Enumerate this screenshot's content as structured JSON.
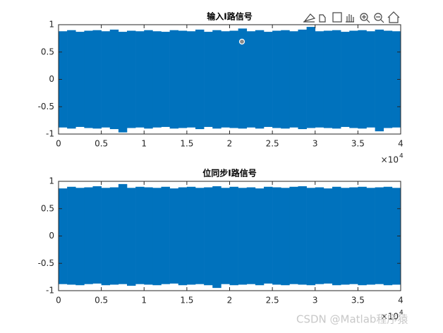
{
  "chart_data": [
    {
      "type": "band",
      "title": "输入I路信号",
      "color": "#0072bd",
      "x": [
        0,
        1000,
        2000,
        3000,
        4000,
        5000,
        6000,
        7000,
        8000,
        9000,
        10000,
        11000,
        12000,
        13000,
        14000,
        15000,
        16000,
        17000,
        18000,
        19000,
        20000,
        21000,
        22000,
        23000,
        24000,
        25000,
        26000,
        27000,
        28000,
        29000,
        30000,
        31000,
        32000,
        33000,
        34000,
        35000,
        36000,
        37000,
        38000,
        39000
      ],
      "upper": [
        0.88,
        0.9,
        0.87,
        0.89,
        0.9,
        0.88,
        0.91,
        0.87,
        0.89,
        0.88,
        0.9,
        0.88,
        0.87,
        0.9,
        0.89,
        0.88,
        0.91,
        0.87,
        0.9,
        0.88,
        0.89,
        0.93,
        0.88,
        0.9,
        0.87,
        0.89,
        0.9,
        0.88,
        0.91,
        0.96,
        0.88,
        0.89,
        0.9,
        0.87,
        0.89,
        0.9,
        0.88,
        0.91,
        0.89,
        0.88
      ],
      "lower": [
        -0.88,
        -0.9,
        -0.87,
        -0.89,
        -0.9,
        -0.88,
        -0.91,
        -0.97,
        -0.89,
        -0.88,
        -0.9,
        -0.88,
        -0.87,
        -0.9,
        -0.89,
        -0.88,
        -0.91,
        -0.87,
        -0.9,
        -0.88,
        -0.89,
        -0.9,
        -0.88,
        -0.9,
        -0.87,
        -0.89,
        -0.9,
        -0.88,
        -0.91,
        -0.89,
        -0.88,
        -0.89,
        -0.9,
        -0.87,
        -0.89,
        -0.9,
        -0.88,
        -0.95,
        -0.89,
        -0.88
      ],
      "xlim": [
        0,
        40000
      ],
      "ylim": [
        -1,
        1
      ],
      "xticks": [
        0,
        {
          "value": 5000,
          "label": "0.5"
        },
        {
          "value": 10000,
          "label": "1"
        },
        {
          "value": 15000,
          "label": "1.5"
        },
        {
          "value": 20000,
          "label": "2"
        },
        {
          "value": 25000,
          "label": "2.5"
        },
        {
          "value": 30000,
          "label": "3"
        },
        {
          "value": 35000,
          "label": "3.5"
        },
        {
          "value": 40000,
          "label": "4"
        }
      ],
      "yticks": [
        -1,
        -0.5,
        0,
        0.5,
        1
      ],
      "x_exponent": {
        "base": "×10",
        "power": "4"
      }
    },
    {
      "type": "band",
      "title": "位同步I路信号",
      "color": "#0072bd",
      "x": [
        0,
        1000,
        2000,
        3000,
        4000,
        5000,
        6000,
        7000,
        8000,
        9000,
        10000,
        11000,
        12000,
        13000,
        14000,
        15000,
        16000,
        17000,
        18000,
        19000,
        20000,
        21000,
        22000,
        23000,
        24000,
        25000,
        26000,
        27000,
        28000,
        29000,
        30000,
        31000,
        32000,
        33000,
        34000,
        35000,
        36000,
        37000,
        38000,
        39000
      ],
      "upper": [
        0.87,
        0.9,
        0.88,
        0.89,
        0.91,
        0.88,
        0.89,
        0.95,
        0.88,
        0.9,
        0.89,
        0.88,
        0.9,
        0.87,
        0.89,
        0.9,
        0.88,
        0.89,
        0.91,
        0.88,
        0.9,
        0.88,
        0.89,
        0.87,
        0.9,
        0.89,
        0.88,
        0.9,
        0.91,
        0.88,
        0.89,
        0.87,
        0.9,
        0.88,
        0.89,
        0.9,
        0.88,
        0.89,
        0.9,
        0.88
      ],
      "lower": [
        -0.88,
        -0.89,
        -0.9,
        -0.88,
        -0.87,
        -0.9,
        -0.89,
        -0.88,
        -0.91,
        -0.88,
        -0.89,
        -0.9,
        -0.88,
        -0.87,
        -0.9,
        -0.89,
        -0.88,
        -0.9,
        -0.95,
        -0.88,
        -0.9,
        -0.89,
        -0.88,
        -0.9,
        -0.87,
        -0.89,
        -0.9,
        -0.88,
        -0.89,
        -0.9,
        -0.88,
        -0.87,
        -0.9,
        -0.89,
        -0.88,
        -0.9,
        -0.89,
        -0.88,
        -0.9,
        -0.89
      ],
      "xlim": [
        0,
        40000
      ],
      "ylim": [
        -1,
        1
      ],
      "xticks": [
        0,
        {
          "value": 5000,
          "label": "0.5"
        },
        {
          "value": 10000,
          "label": "1"
        },
        {
          "value": 15000,
          "label": "1.5"
        },
        {
          "value": 20000,
          "label": "2"
        },
        {
          "value": 25000,
          "label": "2.5"
        },
        {
          "value": 30000,
          "label": "3"
        },
        {
          "value": 35000,
          "label": "3.5"
        },
        {
          "value": 40000,
          "label": "4"
        }
      ],
      "yticks": [
        -1,
        -0.5,
        0,
        0.5,
        1
      ],
      "x_exponent": {
        "base": "×10",
        "power": "4"
      }
    }
  ],
  "watermark": "CSDN @Matlab程序猿"
}
